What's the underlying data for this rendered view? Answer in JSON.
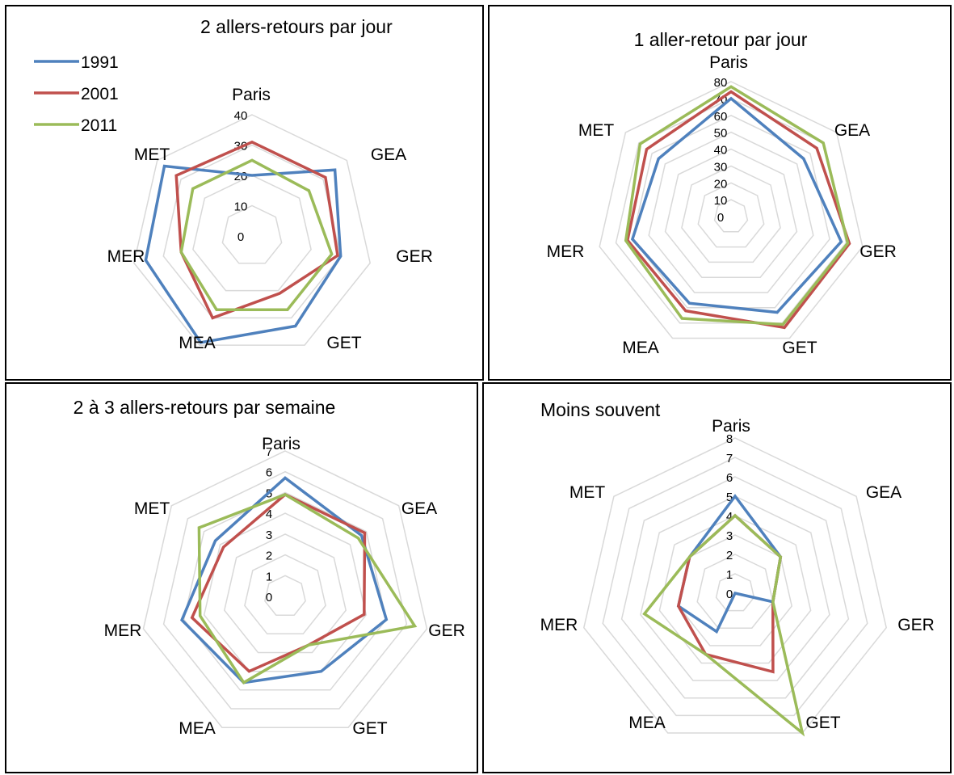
{
  "chart_data": [
    {
      "type": "radar",
      "title": "2 allers-retours par jour",
      "categories": [
        "Paris",
        "GEA",
        "GER",
        "GET",
        "MEA",
        "MER",
        "MET"
      ],
      "rlim": [
        0,
        40
      ],
      "ticks": [
        "0",
        "10",
        "20",
        "30",
        "40"
      ],
      "legend": "top-left",
      "grid": true,
      "series": [
        {
          "name": "1991",
          "color": "#4F81BD",
          "values": [
            20,
            35,
            30,
            33,
            39,
            36,
            37
          ]
        },
        {
          "name": "2001",
          "color": "#C0504D",
          "values": [
            31,
            31,
            29,
            21,
            30,
            24,
            32
          ]
        },
        {
          "name": "2011",
          "color": "#9BBB59",
          "values": [
            25,
            24,
            27,
            27,
            27,
            24,
            25
          ]
        }
      ]
    },
    {
      "type": "radar",
      "title": "1 aller-retour par jour",
      "categories": [
        "Paris",
        "GEA",
        "GER",
        "GET",
        "MEA",
        "MER",
        "MET"
      ],
      "rlim": [
        0,
        80
      ],
      "ticks": [
        "0",
        "10",
        "20",
        "30",
        "40",
        "50",
        "60",
        "70",
        "80"
      ],
      "grid": true,
      "series": [
        {
          "name": "1991",
          "color": "#4F81BD",
          "values": [
            70,
            55,
            67,
            63,
            57,
            60,
            55
          ]
        },
        {
          "name": "2001",
          "color": "#C0504D",
          "values": [
            74,
            65,
            72,
            73,
            62,
            63,
            64
          ]
        },
        {
          "name": "2011",
          "color": "#9BBB59",
          "values": [
            77,
            70,
            71,
            71,
            67,
            64,
            69
          ]
        }
      ]
    },
    {
      "type": "radar",
      "title": "2 à 3 allers-retours par semaine",
      "categories": [
        "Paris",
        "GEA",
        "GER",
        "GET",
        "MEA",
        "MER",
        "MET"
      ],
      "rlim": [
        0,
        7
      ],
      "ticks": [
        "0",
        "1",
        "2",
        "3",
        "4",
        "5",
        "6",
        "7"
      ],
      "grid": true,
      "series": [
        {
          "name": "1991",
          "color": "#4F81BD",
          "values": [
            5.7,
            4.7,
            5.0,
            4.0,
            4.6,
            5.1,
            4.3
          ]
        },
        {
          "name": "2001",
          "color": "#C0504D",
          "values": [
            4.9,
            4.9,
            3.9,
            2.6,
            4.0,
            4.6,
            3.8
          ]
        },
        {
          "name": "2011",
          "color": "#9BBB59",
          "values": [
            4.9,
            4.5,
            6.4,
            2.6,
            4.6,
            4.2,
            5.3
          ]
        }
      ]
    },
    {
      "type": "radar",
      "title": "Moins souvent",
      "categories": [
        "Paris",
        "GEA",
        "GER",
        "GET",
        "MEA",
        "MER",
        "MET"
      ],
      "rlim": [
        0,
        8
      ],
      "ticks": [
        "0",
        "1",
        "2",
        "3",
        "4",
        "5",
        "6",
        "7",
        "8"
      ],
      "grid": true,
      "series": [
        {
          "name": "1991",
          "color": "#4F81BD",
          "values": [
            5,
            3,
            2,
            0,
            2.2,
            3,
            3
          ]
        },
        {
          "name": "2001",
          "color": "#C0504D",
          "values": [
            4,
            3,
            2,
            4.5,
            3.5,
            3,
            3
          ]
        },
        {
          "name": "2011",
          "color": "#9BBB59",
          "values": [
            4,
            3,
            2,
            8,
            3.5,
            4.8,
            3
          ]
        }
      ]
    }
  ]
}
